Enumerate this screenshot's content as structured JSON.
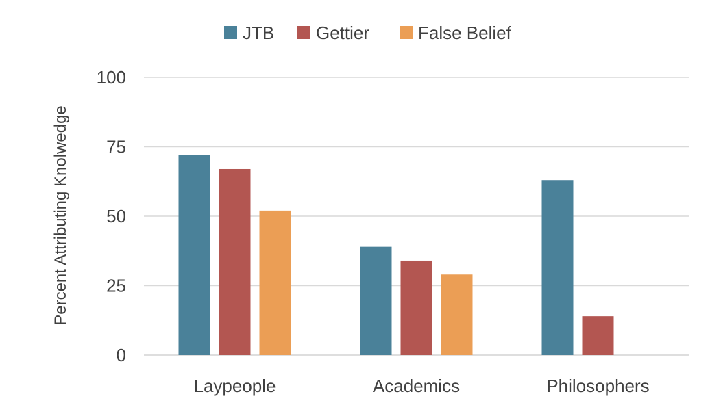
{
  "chart_data": {
    "type": "bar",
    "title": "",
    "xlabel": "",
    "ylabel": "Percent Attributing Knolwedge",
    "categories": [
      "Laypeople",
      "Academics",
      "Philosophers"
    ],
    "series": [
      {
        "name": "JTB",
        "color": "#4a8199",
        "values": [
          72,
          39,
          63
        ]
      },
      {
        "name": "Gettier",
        "color": "#b35651",
        "values": [
          67,
          34,
          14
        ]
      },
      {
        "name": "False Belief",
        "color": "#eb9e55",
        "values": [
          52,
          29,
          null
        ]
      }
    ],
    "ylim": [
      0,
      100
    ],
    "yticks": [
      0,
      25,
      50,
      75,
      100
    ],
    "grid": true,
    "legend_position": "top-center"
  }
}
